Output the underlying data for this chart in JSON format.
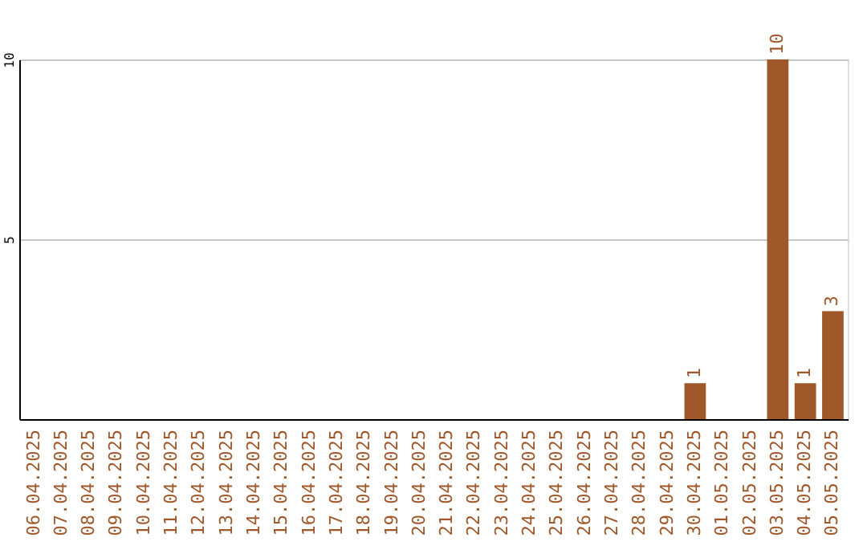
{
  "chart_data": {
    "type": "bar",
    "categories": [
      "06.04.2025",
      "07.04.2025",
      "08.04.2025",
      "09.04.2025",
      "10.04.2025",
      "11.04.2025",
      "12.04.2025",
      "13.04.2025",
      "14.04.2025",
      "15.04.2025",
      "16.04.2025",
      "17.04.2025",
      "18.04.2025",
      "19.04.2025",
      "20.04.2025",
      "21.04.2025",
      "22.04.2025",
      "23.04.2025",
      "24.04.2025",
      "25.04.2025",
      "26.04.2025",
      "27.04.2025",
      "28.04.2025",
      "29.04.2025",
      "30.04.2025",
      "01.05.2025",
      "02.05.2025",
      "03.05.2025",
      "04.05.2025",
      "05.05.2025"
    ],
    "values": [
      0,
      0,
      0,
      0,
      0,
      0,
      0,
      0,
      0,
      0,
      0,
      0,
      0,
      0,
      0,
      0,
      0,
      0,
      0,
      0,
      0,
      0,
      0,
      0,
      1,
      0,
      0,
      10,
      1,
      3
    ],
    "value_labels": [
      null,
      null,
      null,
      null,
      null,
      null,
      null,
      null,
      null,
      null,
      null,
      null,
      null,
      null,
      null,
      null,
      null,
      null,
      null,
      null,
      null,
      null,
      null,
      null,
      "1",
      null,
      null,
      "10",
      "1",
      "3"
    ],
    "color": "#a0582a",
    "ylim": [
      0,
      10
    ],
    "yticks": [
      5,
      10
    ],
    "grid": "y"
  }
}
